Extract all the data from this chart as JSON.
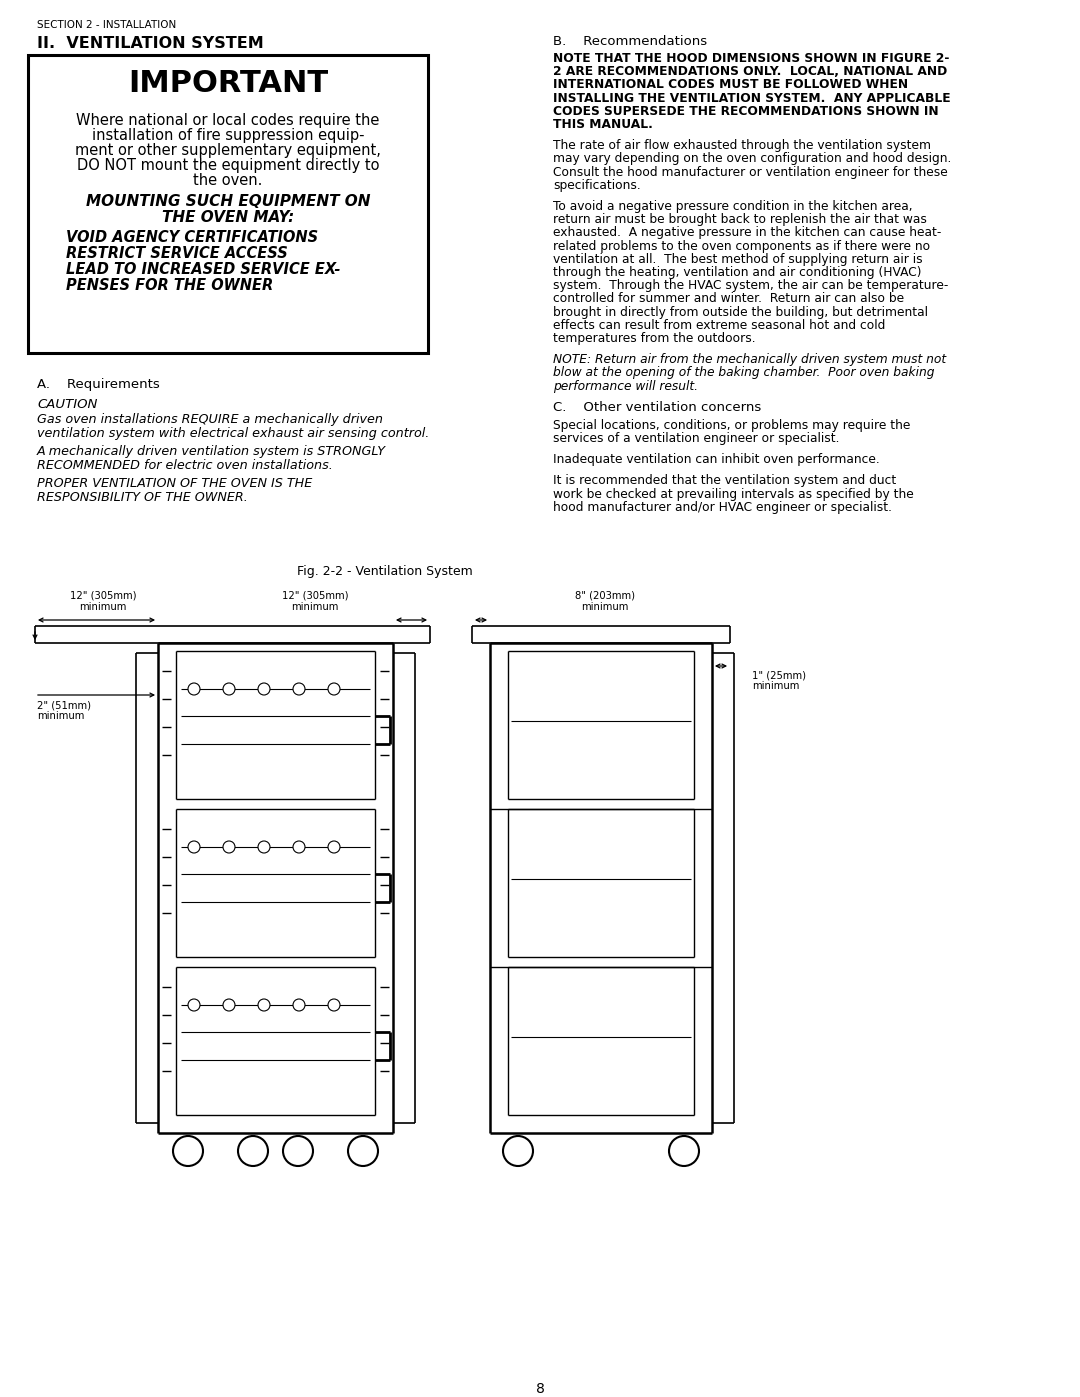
{
  "bg_color": "#ffffff",
  "section_header": "SECTION 2 - INSTALLATION",
  "title": "II.  VENTILATION SYSTEM",
  "important_title": "IMPORTANT",
  "section_a": "A.    Requirements",
  "caution_header": "CAUTION",
  "section_b": "B.    Recommendations",
  "section_c": "C.    Other ventilation concerns",
  "fig_caption": "Fig. 2-2 - Ventilation System",
  "page_number": "8",
  "important_body_lines": [
    "Where national or local codes require the",
    "installation of fire suppression equip-",
    "ment or other supplementary equipment,",
    "DO NOT mount the equipment directly to",
    "the oven."
  ],
  "italic_lines1": [
    "MOUNTING SUCH EQUIPMENT ON",
    "THE OVEN MAY:"
  ],
  "italic_lines2": [
    "VOID AGENCY CERTIFICATIONS",
    "RESTRICT SERVICE ACCESS",
    "LEAD TO INCREASED SERVICE EX-",
    "PENSES FOR THE OWNER"
  ],
  "caution1_lines": [
    "Gas oven installations REQUIRE a mechanically driven",
    "ventilation system with electrical exhaust air sensing control."
  ],
  "caution2_lines": [
    "A mechanically driven ventilation system is STRONGLY",
    "RECOMMENDED for electric oven installations."
  ],
  "caution3_lines": [
    "PROPER VENTILATION OF THE OVEN IS THE",
    "RESPONSIBILITY OF THE OWNER."
  ],
  "rec1_lines": [
    "NOTE THAT THE HOOD DIMENSIONS SHOWN IN FIGURE 2-",
    "2 ARE RECOMMENDATIONS ONLY.  LOCAL, NATIONAL AND",
    "INTERNATIONAL CODES MUST BE FOLLOWED WHEN",
    "INSTALLING THE VENTILATION SYSTEM.  ANY APPLICABLE",
    "CODES SUPERSEDE THE RECOMMENDATIONS SHOWN IN",
    "THIS MANUAL."
  ],
  "rec2_lines": [
    "The rate of air flow exhausted through the ventilation system",
    "may vary depending on the oven configuration and hood design.",
    "Consult the hood manufacturer or ventilation engineer for these",
    "specifications."
  ],
  "rec3_lines": [
    "To avoid a negative pressure condition in the kitchen area,",
    "return air must be brought back to replenish the air that was",
    "exhausted.  A negative pressure in the kitchen can cause heat-",
    "related problems to the oven components as if there were no",
    "ventilation at all.  The best method of supplying return air is",
    "through the heating, ventilation and air conditioning (HVAC)",
    "system.  Through the HVAC system, the air can be temperature-",
    "controlled for summer and winter.  Return air can also be",
    "brought in directly from outside the building, but detrimental",
    "effects can result from extreme seasonal hot and cold",
    "temperatures from the outdoors."
  ],
  "note_lines": [
    "NOTE: Return air from the mechanically driven system must not",
    "blow at the opening of the baking chamber.  Poor oven baking",
    "performance will result."
  ],
  "other1_lines": [
    "Special locations, conditions, or problems may require the",
    "services of a ventilation engineer or specialist."
  ],
  "other2_line": "Inadequate ventilation can inhibit oven performance.",
  "other3_lines": [
    "It is recommended that the ventilation system and duct",
    "work be checked at prevailing intervals as specified by the",
    "hood manufacturer and/or HVAC engineer or specialist."
  ]
}
